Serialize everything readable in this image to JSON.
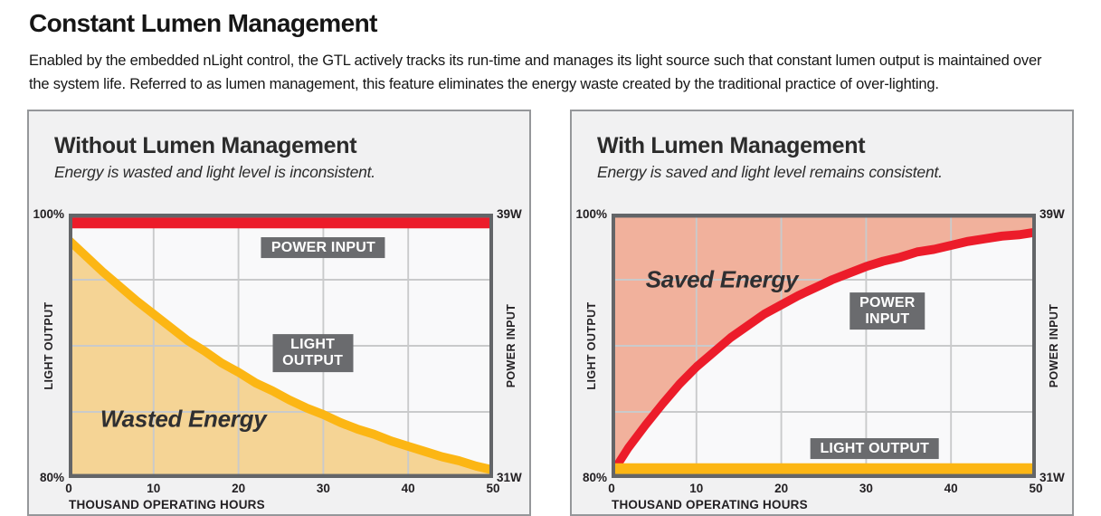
{
  "page": {
    "title": "Constant Lumen Management",
    "description": "Enabled by the embedded nLight control, the GTL actively tracks its run-time and manages its light source such that constant lumen output is maintained over the system life. Referred to as lumen management, this feature eliminates the energy waste created by the traditional practice of over-lighting."
  },
  "colors": {
    "red": "#ec1c2a",
    "yellow": "#fcb614",
    "tan_fill": "#f5d495",
    "salmon_fill": "#f1b19c",
    "label_box_bg": "#6a6b6e",
    "label_box_text": "#ffffff",
    "grid": "#c9cacb",
    "plot_border": "#636568",
    "panel_bg": "#f1f1f2",
    "panel_border": "#95979a"
  },
  "chart_data": [
    {
      "type": "area",
      "title": "Without Lumen Management",
      "subtitle": "Energy is wasted and light level is inconsistent.",
      "region_label": "Wasted Energy",
      "xlabel": "THOUSAND OPERATING HOURS",
      "x_ticks": [
        "0",
        "10",
        "20",
        "30",
        "40",
        "50"
      ],
      "xlim": [
        0,
        50
      ],
      "ylim_percent": [
        80,
        100
      ],
      "ylim_watts": [
        31,
        39
      ],
      "y_left_axis": {
        "label": "LIGHT OUTPUT",
        "top_tick": "100%",
        "bottom_tick": "80%"
      },
      "y_right_axis": {
        "label": "POWER INPUT",
        "top_tick": "39W",
        "bottom_tick": "31W"
      },
      "grid": true,
      "x": [
        0,
        2,
        4,
        6,
        8,
        10,
        12,
        14,
        16,
        18,
        20,
        22,
        24,
        26,
        28,
        30,
        32,
        34,
        36,
        38,
        40,
        42,
        44,
        46,
        48,
        50
      ],
      "series": [
        {
          "name": "POWER INPUT",
          "label_lines": [
            "POWER INPUT"
          ],
          "shape": "constant",
          "value": 99.3,
          "unit": "% of initial power (39W constant)",
          "color": "#ec1c2a",
          "stroke_width": 11.5
        },
        {
          "name": "LIGHT OUTPUT",
          "label_lines": [
            "LIGHT",
            "OUTPUT"
          ],
          "shape": "curve",
          "values": [
            98.0,
            96.8,
            95.6,
            94.5,
            93.4,
            92.4,
            91.4,
            90.4,
            89.6,
            88.7,
            88.0,
            87.2,
            86.6,
            85.9,
            85.3,
            84.8,
            84.2,
            83.7,
            83.3,
            82.8,
            82.4,
            82.0,
            81.6,
            81.3,
            80.9,
            80.6
          ],
          "unit": "% light output (declines 100% to 80%)",
          "color": "#fcb614",
          "stroke_width": 9.5,
          "fill": "below",
          "fill_color": "#f5d495"
        }
      ]
    },
    {
      "type": "area",
      "title": "With Lumen Management",
      "subtitle": "Energy is saved and light level remains consistent.",
      "region_label": "Saved Energy",
      "xlabel": "THOUSAND OPERATING HOURS",
      "x_ticks": [
        "0",
        "10",
        "20",
        "30",
        "40",
        "50"
      ],
      "xlim": [
        0,
        50
      ],
      "ylim_percent": [
        80,
        100
      ],
      "ylim_watts": [
        31,
        39
      ],
      "y_left_axis": {
        "label": "LIGHT OUTPUT",
        "top_tick": "100%",
        "bottom_tick": "80%"
      },
      "y_right_axis": {
        "label": "POWER INPUT",
        "top_tick": "39W",
        "bottom_tick": "31W"
      },
      "grid": true,
      "x": [
        0,
        2,
        4,
        6,
        8,
        10,
        12,
        14,
        16,
        18,
        20,
        22,
        24,
        26,
        28,
        30,
        32,
        34,
        36,
        38,
        40,
        42,
        44,
        46,
        48,
        50
      ],
      "series": [
        {
          "name": "POWER INPUT",
          "label_lines": [
            "POWER",
            "INPUT"
          ],
          "shape": "curve",
          "values": [
            80.3,
            82.3,
            84.0,
            85.6,
            87.1,
            88.4,
            89.5,
            90.6,
            91.5,
            92.4,
            93.1,
            93.8,
            94.4,
            95.0,
            95.5,
            96.0,
            96.4,
            96.7,
            97.1,
            97.3,
            97.6,
            97.9,
            98.1,
            98.3,
            98.4,
            98.6
          ],
          "unit": "% power (rises 31W to 39W)",
          "color": "#ec1c2a",
          "stroke_width": 9.5,
          "fill": "above",
          "fill_color": "#f1b19c"
        },
        {
          "name": "LIGHT OUTPUT",
          "label_lines": [
            "LIGHT OUTPUT"
          ],
          "shape": "constant",
          "value": 80.7,
          "unit": "% light output (constant 80%)",
          "color": "#fcb614",
          "stroke_width": 11.5
        }
      ]
    }
  ]
}
